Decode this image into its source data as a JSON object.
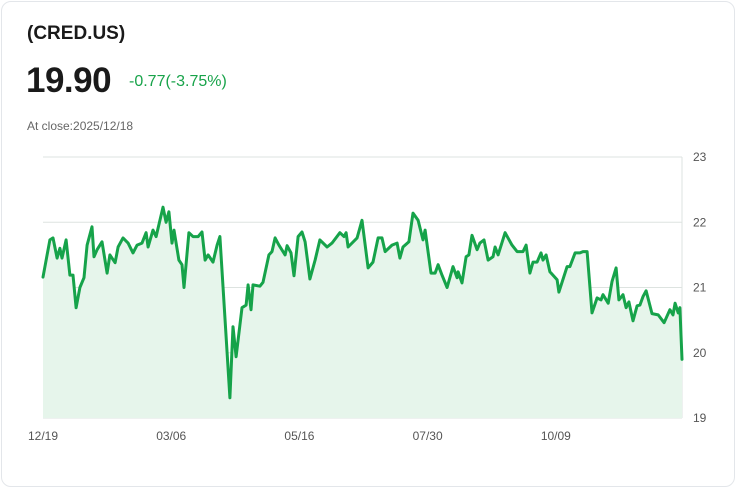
{
  "header": {
    "ticker": "(CRED.US)",
    "price": "19.90",
    "change": "-0.77(-3.75%)",
    "close_label": "At close:2025/12/18"
  },
  "colors": {
    "line": "#16a34a",
    "fill": "#e6f5eb",
    "grid": "#dde3e0",
    "change": "#18a34a"
  },
  "chart_data": {
    "type": "area",
    "title": "(CRED.US)",
    "xlabel": "",
    "ylabel": "",
    "xlim": [
      0,
      249.2
    ],
    "ylim": [
      19,
      23
    ],
    "grid": true,
    "x_ticks": [
      {
        "x": 0,
        "label": "12/19"
      },
      {
        "x": 50,
        "label": "03/06"
      },
      {
        "x": 100,
        "label": "05/16"
      },
      {
        "x": 150,
        "label": "07/30"
      },
      {
        "x": 200,
        "label": "10/09"
      }
    ],
    "y_ticks": [
      {
        "y": 23,
        "label": "23"
      },
      {
        "y": 22,
        "label": "22"
      },
      {
        "y": 21,
        "label": "21"
      },
      {
        "y": 20,
        "label": "20"
      },
      {
        "y": 19,
        "label": "19"
      }
    ],
    "series": [
      {
        "name": "CRED.US close",
        "points": [
          [
            0,
            21.16
          ],
          [
            1.6,
            21.5
          ],
          [
            2.7,
            21.73
          ],
          [
            3.9,
            21.76
          ],
          [
            5.5,
            21.45
          ],
          [
            6.6,
            21.6
          ],
          [
            7.4,
            21.45
          ],
          [
            9,
            21.73
          ],
          [
            10.5,
            21.19
          ],
          [
            11.7,
            21.19
          ],
          [
            12.9,
            20.69
          ],
          [
            14.4,
            21.0
          ],
          [
            16,
            21.15
          ],
          [
            17.2,
            21.65
          ],
          [
            19.1,
            21.93
          ],
          [
            19.9,
            21.47
          ],
          [
            21.1,
            21.58
          ],
          [
            23,
            21.7
          ],
          [
            25,
            21.22
          ],
          [
            26.1,
            21.5
          ],
          [
            28.1,
            21.38
          ],
          [
            29.3,
            21.62
          ],
          [
            31.2,
            21.76
          ],
          [
            33.2,
            21.68
          ],
          [
            35.1,
            21.53
          ],
          [
            36.7,
            21.65
          ],
          [
            38.6,
            21.68
          ],
          [
            40.2,
            21.84
          ],
          [
            41,
            21.62
          ],
          [
            42.9,
            21.88
          ],
          [
            44.1,
            21.78
          ],
          [
            46.8,
            22.23
          ],
          [
            48,
            22.0
          ],
          [
            49.1,
            22.16
          ],
          [
            50.3,
            21.68
          ],
          [
            51.1,
            21.88
          ],
          [
            53,
            21.42
          ],
          [
            54.2,
            21.35
          ],
          [
            55,
            21.0
          ],
          [
            56.9,
            21.84
          ],
          [
            58.5,
            21.78
          ],
          [
            60.5,
            21.78
          ],
          [
            62,
            21.85
          ],
          [
            63.2,
            21.42
          ],
          [
            64.4,
            21.5
          ],
          [
            66.3,
            21.39
          ],
          [
            67.9,
            21.65
          ],
          [
            69,
            21.78
          ],
          [
            72.9,
            19.31
          ],
          [
            74.1,
            20.4
          ],
          [
            75.3,
            19.94
          ],
          [
            77.6,
            20.69
          ],
          [
            79.2,
            20.73
          ],
          [
            80,
            21.04
          ],
          [
            81.1,
            20.66
          ],
          [
            81.9,
            21.04
          ],
          [
            84.6,
            21.02
          ],
          [
            85.8,
            21.08
          ],
          [
            88.1,
            21.5
          ],
          [
            89.3,
            21.55
          ],
          [
            90.5,
            21.76
          ],
          [
            92,
            21.65
          ],
          [
            94.4,
            21.5
          ],
          [
            95.2,
            21.64
          ],
          [
            96.7,
            21.53
          ],
          [
            97.9,
            21.18
          ],
          [
            99.5,
            21.78
          ],
          [
            101,
            21.85
          ],
          [
            102.2,
            21.7
          ],
          [
            104.1,
            21.13
          ],
          [
            106.1,
            21.42
          ],
          [
            108,
            21.73
          ],
          [
            110.8,
            21.62
          ],
          [
            112.7,
            21.68
          ],
          [
            115.8,
            21.84
          ],
          [
            117.4,
            21.78
          ],
          [
            118.2,
            21.84
          ],
          [
            119,
            21.62
          ],
          [
            122.5,
            21.76
          ],
          [
            124.4,
            22.03
          ],
          [
            126.8,
            21.3
          ],
          [
            128.7,
            21.39
          ],
          [
            130.7,
            21.76
          ],
          [
            132.2,
            21.76
          ],
          [
            133.4,
            21.55
          ],
          [
            136.1,
            21.65
          ],
          [
            138.1,
            21.68
          ],
          [
            139.2,
            21.45
          ],
          [
            140.4,
            21.62
          ],
          [
            142.7,
            21.7
          ],
          [
            144.3,
            22.14
          ],
          [
            146.3,
            22.03
          ],
          [
            148.2,
            21.73
          ],
          [
            149,
            21.88
          ],
          [
            151.3,
            21.22
          ],
          [
            152.9,
            21.22
          ],
          [
            154.1,
            21.35
          ],
          [
            155.6,
            21.19
          ],
          [
            157.6,
            21.0
          ],
          [
            159.9,
            21.32
          ],
          [
            161.5,
            21.15
          ],
          [
            161.9,
            21.24
          ],
          [
            163.4,
            21.07
          ],
          [
            165,
            21.47
          ],
          [
            166.1,
            21.5
          ],
          [
            167.3,
            21.8
          ],
          [
            169.3,
            21.58
          ],
          [
            170.4,
            21.68
          ],
          [
            172,
            21.73
          ],
          [
            173.6,
            21.42
          ],
          [
            175.5,
            21.47
          ],
          [
            176.3,
            21.62
          ],
          [
            177.5,
            21.5
          ],
          [
            180.2,
            21.84
          ],
          [
            182.9,
            21.65
          ],
          [
            184.9,
            21.55
          ],
          [
            187.2,
            21.55
          ],
          [
            188.4,
            21.65
          ],
          [
            189.9,
            21.22
          ],
          [
            191.1,
            21.39
          ],
          [
            192.7,
            21.39
          ],
          [
            194.2,
            21.53
          ],
          [
            195,
            21.42
          ],
          [
            196.2,
            21.5
          ],
          [
            197.7,
            21.24
          ],
          [
            200.5,
            21.12
          ],
          [
            201.2,
            20.93
          ],
          [
            204.4,
            21.32
          ],
          [
            205.5,
            21.32
          ],
          [
            207.5,
            21.53
          ],
          [
            209.4,
            21.53
          ],
          [
            210.6,
            21.55
          ],
          [
            212.2,
            21.55
          ],
          [
            214.1,
            20.61
          ],
          [
            216.1,
            20.84
          ],
          [
            217.6,
            20.81
          ],
          [
            218.4,
            20.89
          ],
          [
            220.4,
            20.76
          ],
          [
            221.9,
            21.09
          ],
          [
            223.5,
            21.3
          ],
          [
            224.6,
            20.81
          ],
          [
            226.2,
            20.89
          ],
          [
            227.4,
            20.69
          ],
          [
            228.5,
            20.78
          ],
          [
            230.1,
            20.49
          ],
          [
            231.7,
            20.72
          ],
          [
            232.8,
            20.73
          ],
          [
            234,
            20.86
          ],
          [
            235.2,
            20.95
          ],
          [
            237.5,
            20.6
          ],
          [
            239.9,
            20.58
          ],
          [
            242.2,
            20.46
          ],
          [
            244.5,
            20.66
          ],
          [
            245.7,
            20.58
          ],
          [
            246.5,
            20.76
          ],
          [
            247.7,
            20.61
          ],
          [
            248.4,
            20.69
          ],
          [
            249.2,
            19.9
          ]
        ]
      }
    ]
  }
}
